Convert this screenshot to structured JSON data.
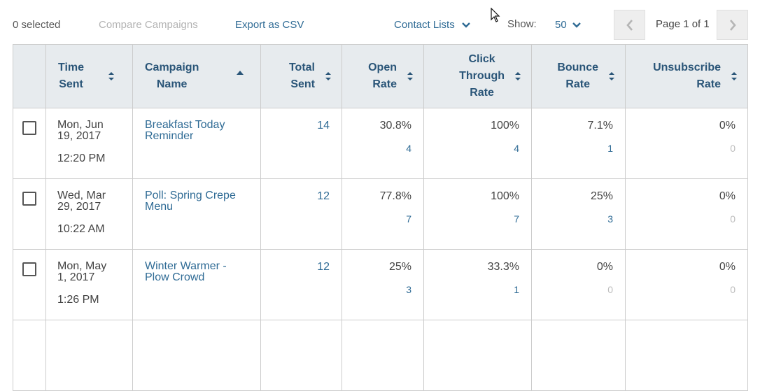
{
  "toolbar": {
    "selected_count": "0 selected",
    "compare_label": "Compare Campaigns",
    "export_label": "Export as CSV",
    "contact_lists_label": "Contact Lists",
    "show_label": "Show:",
    "show_value": "50",
    "page_label": "Page 1 of 1"
  },
  "table": {
    "headers": {
      "time_sent": [
        "Time",
        "Sent"
      ],
      "campaign_name": [
        "Campaign",
        "Name"
      ],
      "total_sent": [
        "Total",
        "Sent"
      ],
      "open_rate": [
        "Open",
        "Rate"
      ],
      "click_through_rate": [
        "Click",
        "Through",
        "Rate"
      ],
      "bounce_rate": [
        "Bounce",
        "Rate"
      ],
      "unsubscribe_rate": [
        "Unsubscribe",
        "Rate"
      ]
    },
    "rows": [
      {
        "date_line1": "Mon, Jun",
        "date_line2": "19, 2017",
        "time": "12:20 PM",
        "campaign_line1": "Breakfast Today",
        "campaign_line2": "Reminder",
        "total_sent": "14",
        "open_rate": "30.8%",
        "open_count": "4",
        "click_rate": "100%",
        "click_count": "4",
        "bounce_rate": "7.1%",
        "bounce_count": "1",
        "unsub_rate": "0%",
        "unsub_count": "0"
      },
      {
        "date_line1": "Wed, Mar",
        "date_line2": "29, 2017",
        "time": "10:22 AM",
        "campaign_line1": "Poll: Spring Crepe",
        "campaign_line2": "Menu",
        "total_sent": "12",
        "open_rate": "77.8%",
        "open_count": "7",
        "click_rate": "100%",
        "click_count": "7",
        "bounce_rate": "25%",
        "bounce_count": "3",
        "unsub_rate": "0%",
        "unsub_count": "0"
      },
      {
        "date_line1": "Mon, May",
        "date_line2": "1, 2017",
        "time": "1:26 PM",
        "campaign_line1": "Winter Warmer -",
        "campaign_line2": "Plow Crowd",
        "total_sent": "12",
        "open_rate": "25%",
        "open_count": "3",
        "click_rate": "33.3%",
        "click_count": "1",
        "bounce_rate": "0%",
        "bounce_count": "0",
        "unsub_rate": "0%",
        "unsub_count": "0"
      }
    ]
  },
  "icons": {
    "chevron": "chevron-down-icon",
    "sort": "sort-icon",
    "pager_prev": "chevron-left-icon",
    "pager_next": "chevron-right-icon",
    "cursor": "mouse-cursor-icon"
  },
  "colors": {
    "link": "#2f6b95",
    "header_bg": "#e7ebee",
    "header_text": "#2a5578",
    "muted": "#b3b3b3",
    "border": "#cccccc"
  }
}
